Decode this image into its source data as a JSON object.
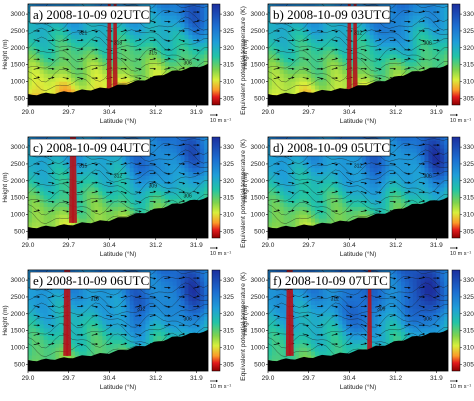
{
  "chart_data": [
    {
      "type": "heatmap",
      "title": "a) 2008-10-09 02UTC",
      "xlabel": "Latitude (°N)",
      "ylabel": "Height (m)",
      "colorbar_label": "Equivalent potential temperature (K)",
      "x_ticks": [
        "29.0",
        "29.7",
        "30.4",
        "31.2",
        "31.9"
      ],
      "y_ticks": [
        "500",
        "1000",
        "1500",
        "2000",
        "2500",
        "3000"
      ],
      "colorbar_ticks": [
        "305",
        "310",
        "315",
        "320",
        "325",
        "330"
      ],
      "xlim": [
        29.0,
        32.1
      ],
      "ylim": [
        300,
        3300
      ],
      "clim": [
        303,
        333
      ],
      "reference_vector": "10 m s⁻¹",
      "contour_labels": [
        "327",
        "321",
        "318",
        "315",
        "306"
      ],
      "terrain": {
        "lat": [
          29.0,
          29.7,
          30.4,
          31.0,
          31.5,
          32.1
        ],
        "height": [
          600,
          690,
          820,
          1050,
          1300,
          1500
        ]
      },
      "red_contour_lat": [
        30.4,
        30.5
      ],
      "field": {
        "base": 314,
        "lapse_k_per_km": 5.5,
        "warm_anomalies": [
          {
            "lat": 31.9,
            "height": 2900,
            "amp": 6
          }
        ]
      }
    },
    {
      "type": "heatmap",
      "title": "b) 2008-10-09 03UTC",
      "xlabel": "Latitude (°N)",
      "ylabel": "Height (m)",
      "colorbar_label": "Equivalent potential temperature (K)",
      "x_ticks": [
        "29.0",
        "29.7",
        "30.4",
        "31.2",
        "31.9"
      ],
      "y_ticks": [
        "500",
        "1000",
        "1500",
        "2000",
        "2500",
        "3000"
      ],
      "colorbar_ticks": [
        "305",
        "310",
        "315",
        "320",
        "325",
        "330"
      ],
      "xlim": [
        29.0,
        32.1
      ],
      "ylim": [
        300,
        3300
      ],
      "clim": [
        303,
        333
      ],
      "reference_vector": "10 m s⁻¹",
      "contour_labels": [
        "318",
        "312",
        "306"
      ],
      "terrain": {
        "lat": [
          29.0,
          29.7,
          30.4,
          31.0,
          31.5,
          32.1
        ],
        "height": [
          600,
          680,
          800,
          1030,
          1280,
          1480
        ]
      },
      "red_contour_lat": [
        30.4,
        30.5
      ],
      "field": {
        "base": 315,
        "lapse_k_per_km": 5.0,
        "warm_anomalies": [
          {
            "lat": 31.1,
            "height": 2500,
            "amp": 5
          }
        ]
      }
    },
    {
      "type": "heatmap",
      "title": "c) 2008-10-09 04UTC",
      "xlabel": "Latitude (°N)",
      "ylabel": "Height (m)",
      "colorbar_label": "Equivalent potential temperature (K)",
      "x_ticks": [
        "29.0",
        "29.7",
        "30.4",
        "31.2",
        "31.9"
      ],
      "y_ticks": [
        "500",
        "1000",
        "1500",
        "2000",
        "2500",
        "3000"
      ],
      "colorbar_ticks": [
        "305",
        "310",
        "315",
        "320",
        "325",
        "330"
      ],
      "xlim": [
        29.0,
        32.1
      ],
      "ylim": [
        300,
        3300
      ],
      "clim": [
        303,
        333
      ],
      "reference_vector": "10 m s⁻¹",
      "contour_labels": [
        "318",
        "315",
        "312",
        "309",
        "306"
      ],
      "terrain": {
        "lat": [
          29.0,
          29.7,
          30.4,
          31.0,
          31.5,
          32.1
        ],
        "height": [
          600,
          690,
          830,
          1060,
          1300,
          1500
        ]
      },
      "red_contour_lat": [
        29.75,
        29.8
      ],
      "field": {
        "base": 316,
        "lapse_k_per_km": 4.5,
        "warm_anomalies": [
          {
            "lat": 31.0,
            "height": 2300,
            "amp": 6
          },
          {
            "lat": 31.8,
            "height": 2600,
            "amp": 7
          }
        ]
      }
    },
    {
      "type": "heatmap",
      "title": "d) 2008-10-09 05UTC",
      "xlabel": "Latitude (°N)",
      "ylabel": "Height (m)",
      "colorbar_label": "Equivalent potential temperature (K)",
      "x_ticks": [
        "29.0",
        "29.7",
        "30.4",
        "31.2",
        "31.9"
      ],
      "y_ticks": [
        "500",
        "1000",
        "1500",
        "2000",
        "2500",
        "3000"
      ],
      "colorbar_ticks": [
        "305",
        "310",
        "315",
        "320",
        "325",
        "330"
      ],
      "xlim": [
        29.0,
        32.1
      ],
      "ylim": [
        300,
        3300
      ],
      "clim": [
        303,
        333
      ],
      "reference_vector": "10 m s⁻¹",
      "contour_labels": [
        "318",
        "312",
        "306"
      ],
      "terrain": {
        "lat": [
          29.0,
          29.7,
          30.4,
          31.0,
          31.5,
          32.1
        ],
        "height": [
          600,
          680,
          820,
          1040,
          1290,
          1490
        ]
      },
      "red_contour_lat": [],
      "field": {
        "base": 317,
        "lapse_k_per_km": 4.5,
        "warm_anomalies": [
          {
            "lat": 30.8,
            "height": 2200,
            "amp": 6
          },
          {
            "lat": 31.9,
            "height": 2500,
            "amp": 9
          }
        ]
      }
    },
    {
      "type": "heatmap",
      "title": "e) 2008-10-09 06UTC",
      "xlabel": "Latitude (°N)",
      "ylabel": "Height (m)",
      "colorbar_label": "Equivalent potential temperature (K)",
      "x_ticks": [
        "29.0",
        "29.7",
        "30.4",
        "31.2",
        "31.9"
      ],
      "y_ticks": [
        "500",
        "1000",
        "1500",
        "2000",
        "2500",
        "3000"
      ],
      "colorbar_ticks": [
        "305",
        "310",
        "315",
        "320",
        "325",
        "330"
      ],
      "xlim": [
        29.0,
        32.1
      ],
      "ylim": [
        300,
        3300
      ],
      "clim": [
        303,
        333
      ],
      "reference_vector": "10 m s⁻¹",
      "contour_labels": [
        "321",
        "318",
        "312",
        "306"
      ],
      "terrain": {
        "lat": [
          29.0,
          29.7,
          30.4,
          31.0,
          31.5,
          32.1
        ],
        "height": [
          600,
          690,
          840,
          1060,
          1300,
          1500
        ]
      },
      "red_contour_lat": [
        29.65,
        29.7
      ],
      "field": {
        "base": 318,
        "lapse_k_per_km": 4.0,
        "warm_anomalies": [
          {
            "lat": 30.9,
            "height": 2000,
            "amp": 7
          },
          {
            "lat": 31.8,
            "height": 2400,
            "amp": 9
          }
        ]
      }
    },
    {
      "type": "heatmap",
      "title": "f) 2008-10-09 07UTC",
      "xlabel": "Latitude (°N)",
      "ylabel": "Height (m)",
      "colorbar_label": "Equivalent potential temperature (K)",
      "x_ticks": [
        "29.0",
        "29.7",
        "30.4",
        "31.2",
        "31.9"
      ],
      "y_ticks": [
        "500",
        "1000",
        "1500",
        "2000",
        "2500",
        "3000"
      ],
      "colorbar_ticks": [
        "305",
        "310",
        "315",
        "320",
        "325",
        "330"
      ],
      "xlim": [
        29.0,
        32.1
      ],
      "ylim": [
        300,
        3300
      ],
      "clim": [
        303,
        333
      ],
      "reference_vector": "10 m s⁻¹",
      "contour_labels": [
        "318",
        "312",
        "309",
        "306"
      ],
      "terrain": {
        "lat": [
          29.0,
          29.7,
          30.4,
          31.0,
          31.5,
          32.1
        ],
        "height": [
          600,
          700,
          850,
          1070,
          1310,
          1510
        ]
      },
      "red_contour_lat": [
        29.35,
        29.4,
        30.75
      ],
      "field": {
        "base": 319,
        "lapse_k_per_km": 4.0,
        "warm_anomalies": [
          {
            "lat": 30.6,
            "height": 2000,
            "amp": 7
          },
          {
            "lat": 31.7,
            "height": 2400,
            "amp": 10
          }
        ]
      }
    }
  ]
}
